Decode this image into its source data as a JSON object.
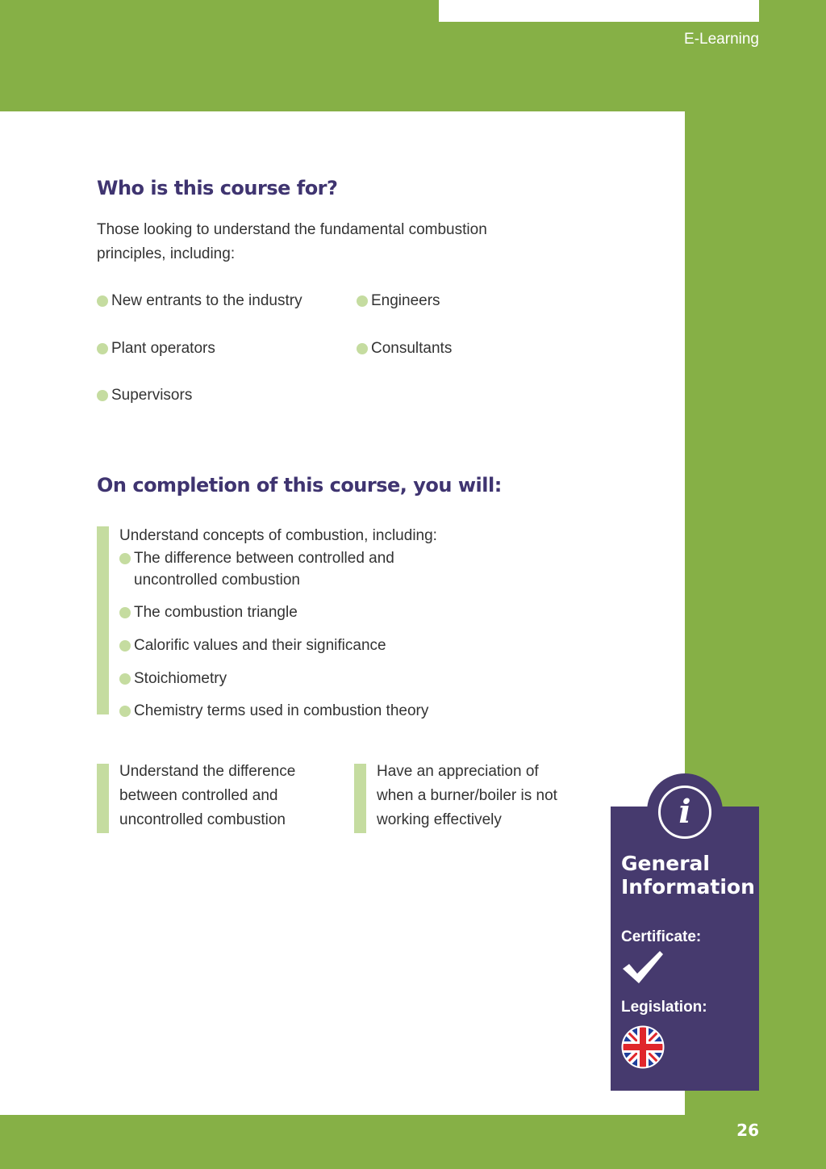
{
  "header": {
    "section": "E-Learning"
  },
  "audience": {
    "heading": "Who is this course for?",
    "intro": "Those looking to understand the fundamental combustion principles, including:",
    "items": [
      "New entrants to the industry",
      "Engineers",
      "Plant operators",
      "Consultants",
      "Supervisors"
    ]
  },
  "outcomes": {
    "heading": "On completion of this course, you will:",
    "main": "Understand concepts of combustion, including:",
    "sub": [
      "The difference between controlled and uncontrolled combustion",
      "The combustion triangle",
      "Calorific values and their significance",
      "Stoichiometry",
      "Chemistry terms used in combustion theory"
    ],
    "extra": [
      "Understand the difference between controlled and uncontrolled combustion",
      "Have an appreciation of when a burner/boiler is not working effectively"
    ]
  },
  "info": {
    "title": "General Information",
    "certificate_label": "Certificate:",
    "certificate_icon": "check-icon",
    "legislation_label": "Legislation:",
    "legislation_icon": "uk-flag-icon"
  },
  "footer": {
    "page_number": "26"
  },
  "colors": {
    "green": "#86b046",
    "purple": "#463a6e",
    "heading": "#3f3470",
    "bullet": "#c5dca0"
  }
}
